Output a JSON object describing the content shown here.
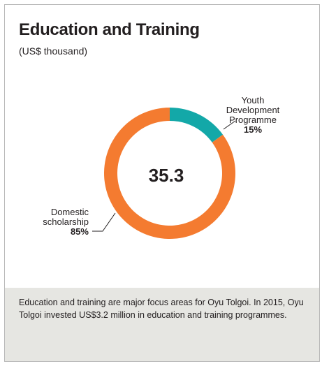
{
  "card": {
    "title": "Education and Training",
    "subtitle": "(US$ thousand)"
  },
  "chart_data": {
    "type": "pie",
    "variant": "donut",
    "title": "Education and Training",
    "subtitle": "(US$ thousand)",
    "center_label": "35.3",
    "slices": [
      {
        "name": "Youth Development Programme",
        "label_lines": [
          "Youth",
          "Development",
          "Programme"
        ],
        "value": 15,
        "value_label": "15%",
        "color": "#13a8a8"
      },
      {
        "name": "Domestic scholarship",
        "label_lines": [
          "Domestic",
          "scholarship"
        ],
        "value": 85,
        "value_label": "85%",
        "color": "#f47b30"
      }
    ],
    "legend": "none"
  },
  "footer": {
    "text": "Education and training are major focus areas for Oyu Tolgoi. In 2015, Oyu Tolgoi invested US$3.2 million in education and training programmes."
  }
}
